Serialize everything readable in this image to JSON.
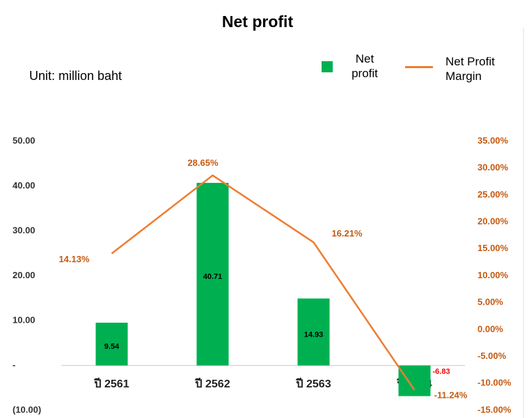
{
  "chart_data": {
    "type": "bar_line",
    "title": "Net profit",
    "subtitle": "Unit: million baht",
    "categories": [
      "ปี 2561",
      "ปี 2562",
      "ปี 2563",
      "ปี 2564"
    ],
    "series": [
      {
        "name": "Net profit",
        "type": "bar",
        "color": "#00b050",
        "values": [
          9.54,
          40.71,
          14.93,
          -6.83
        ]
      },
      {
        "name": "Net Profit Margin",
        "type": "line",
        "axis": "y2",
        "color": "#ed7d31",
        "values": [
          14.13,
          28.65,
          16.21,
          -11.24
        ],
        "value_labels": [
          "14.13%",
          "28.65%",
          "16.21%",
          "-11.24%"
        ]
      }
    ],
    "ylim": [
      -10,
      50
    ],
    "yticks": [
      {
        "value": 50,
        "label": "50.00"
      },
      {
        "value": 40,
        "label": "40.00"
      },
      {
        "value": 30,
        "label": "30.00"
      },
      {
        "value": 20,
        "label": "20.00"
      },
      {
        "value": 10,
        "label": "10.00"
      },
      {
        "value": 0,
        "label": "-"
      },
      {
        "value": -10,
        "label": "(10.00)"
      }
    ],
    "y2lim": [
      -15,
      35
    ],
    "y2ticks": [
      {
        "value": 35,
        "label": "35.00%"
      },
      {
        "value": 30,
        "label": "30.00%"
      },
      {
        "value": 25,
        "label": "25.00%"
      },
      {
        "value": 20,
        "label": "20.00%"
      },
      {
        "value": 15,
        "label": "15.00%"
      },
      {
        "value": 10,
        "label": "10.00%"
      },
      {
        "value": 5,
        "label": "5.00%"
      },
      {
        "value": 0,
        "label": "0.00%"
      },
      {
        "value": -5,
        "label": "-5.00%"
      },
      {
        "value": -10,
        "label": "-10.00%"
      },
      {
        "value": -15,
        "label": "-15.00%"
      }
    ],
    "grid": false,
    "legend": "top-right"
  }
}
